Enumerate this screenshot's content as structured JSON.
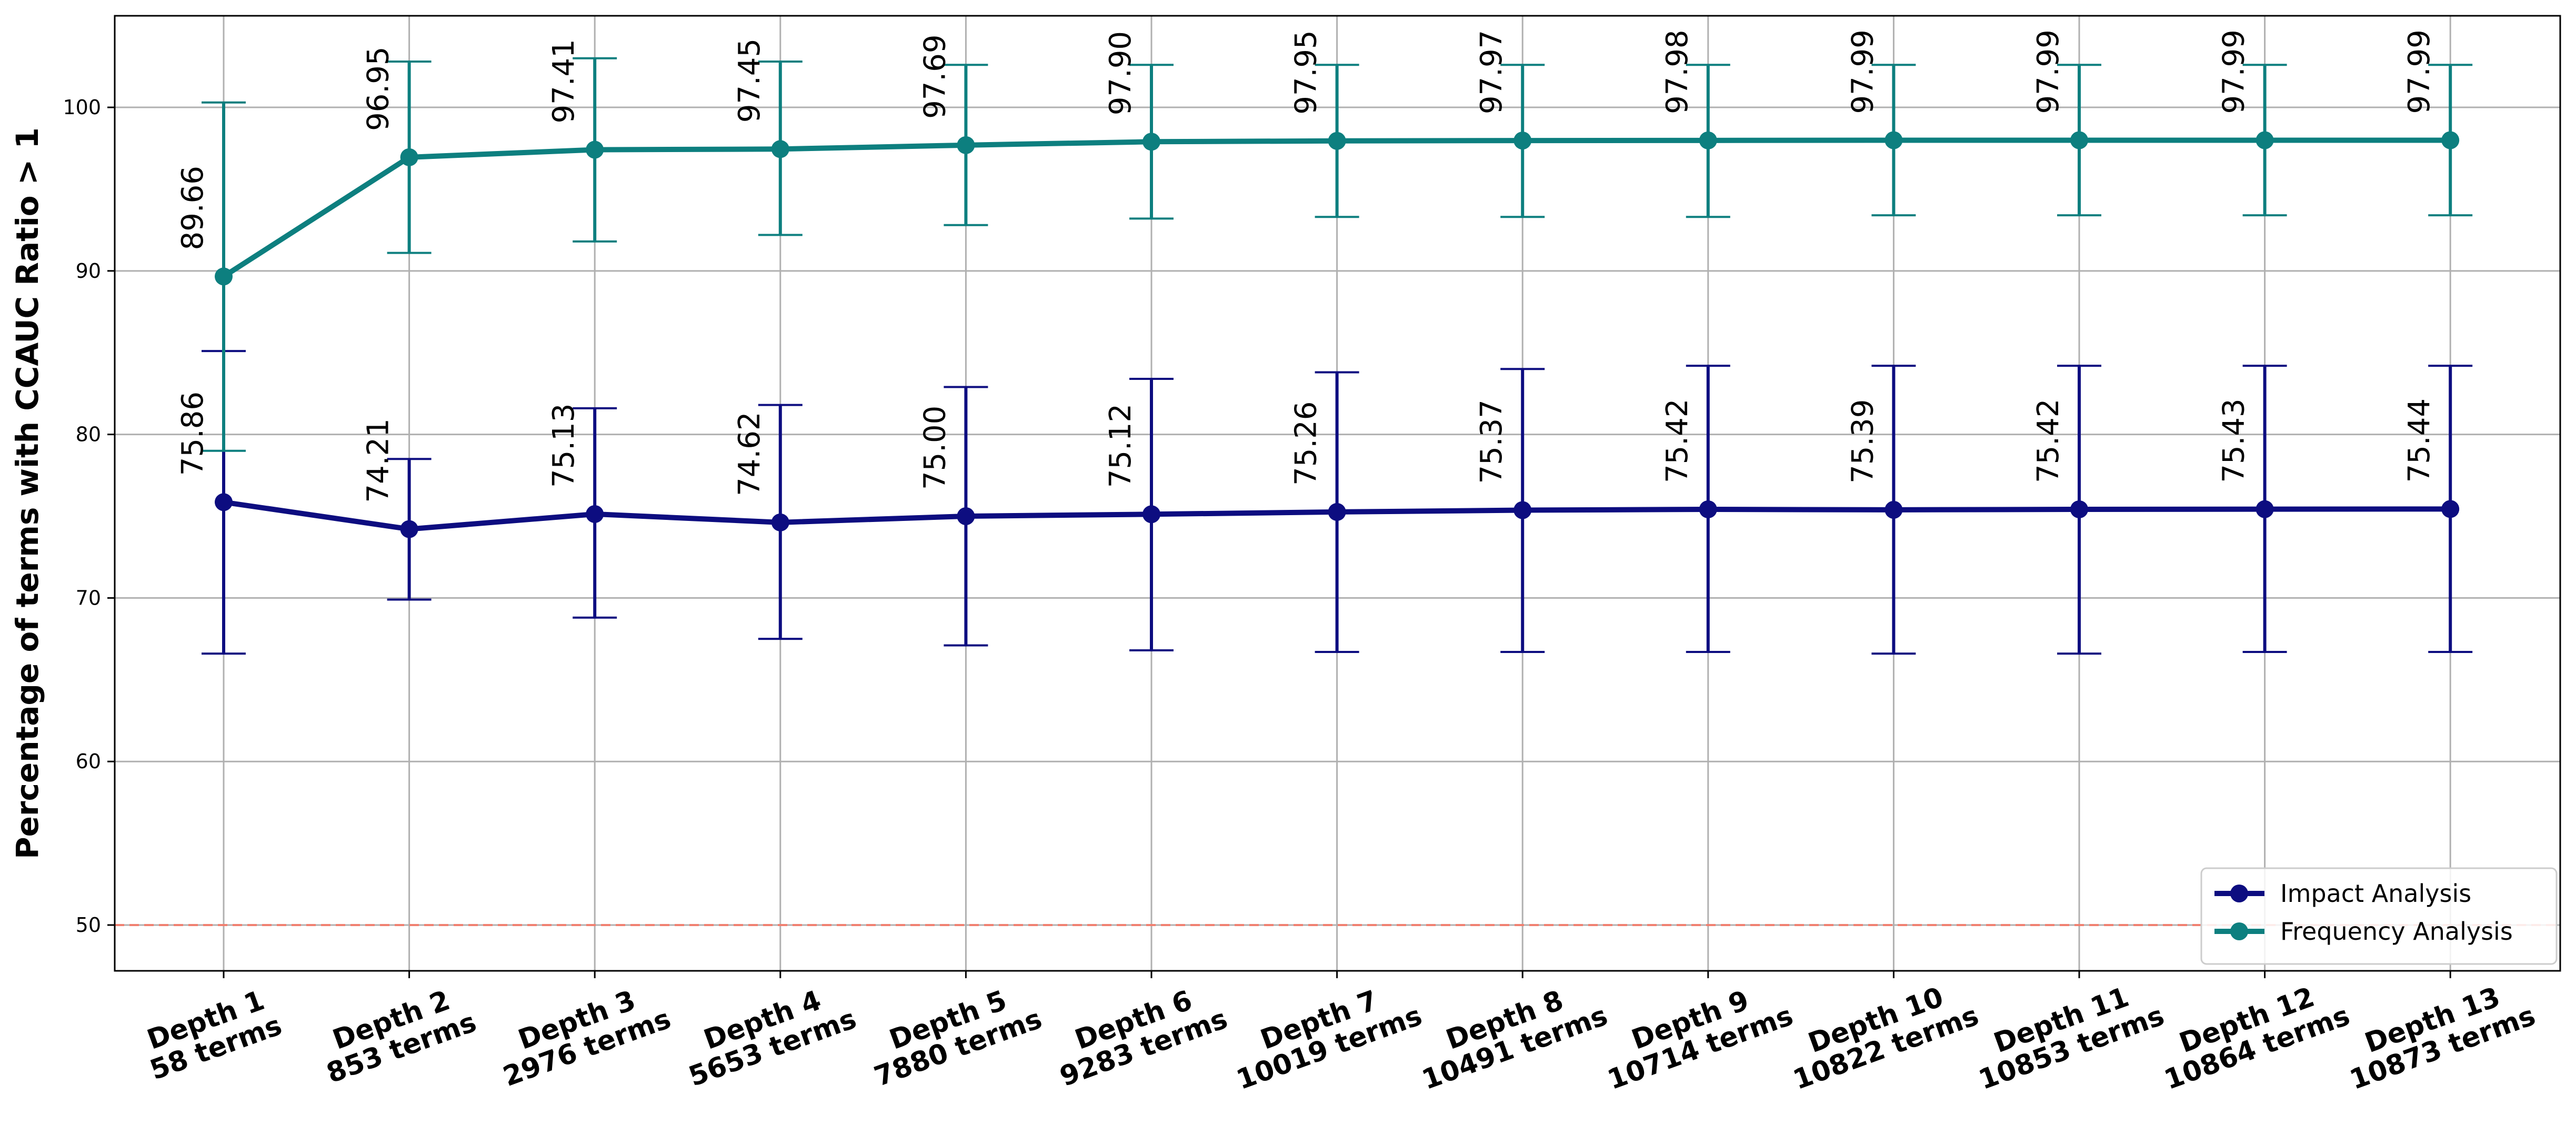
{
  "chart_data": {
    "type": "line",
    "title": "",
    "xlabel": "",
    "ylabel": "Percentage of terms with CCAUC Ratio > 1",
    "categories": [
      [
        "Depth 1",
        "58 terms"
      ],
      [
        "Depth 2",
        "853 terms"
      ],
      [
        "Depth 3",
        "2976 terms"
      ],
      [
        "Depth 4",
        "5653 terms"
      ],
      [
        "Depth 5",
        "7880 terms"
      ],
      [
        "Depth 6",
        "9283 terms"
      ],
      [
        "Depth 7",
        "10019 terms"
      ],
      [
        "Depth 8",
        "10491 terms"
      ],
      [
        "Depth 9",
        "10714 terms"
      ],
      [
        "Depth 10",
        "10822 terms"
      ],
      [
        "Depth 11",
        "10853 terms"
      ],
      [
        "Depth 12",
        "10864 terms"
      ],
      [
        "Depth 13",
        "10873 terms"
      ]
    ],
    "ylim": [
      47.2,
      105.6
    ],
    "yticks": [
      50,
      60,
      70,
      80,
      90,
      100
    ],
    "grid": true,
    "reference_line": {
      "y": 50,
      "color": "#f08070",
      "style": "dashed"
    },
    "legend_position": "lower-right",
    "series": [
      {
        "name": "Impact Analysis",
        "color": "#0d0d80",
        "values": [
          75.86,
          74.21,
          75.13,
          74.62,
          75.0,
          75.12,
          75.26,
          75.37,
          75.42,
          75.39,
          75.42,
          75.43,
          75.44
        ],
        "labels": [
          "75.86",
          "74.21",
          "75.13",
          "74.62",
          "75.00",
          "75.12",
          "75.26",
          "75.37",
          "75.42",
          "75.39",
          "75.42",
          "75.43",
          "75.44"
        ],
        "err_low": [
          66.6,
          69.9,
          68.8,
          67.5,
          67.1,
          66.8,
          66.7,
          66.7,
          66.7,
          66.6,
          66.6,
          66.7,
          66.7
        ],
        "err_high": [
          85.1,
          78.5,
          81.6,
          81.8,
          82.9,
          83.4,
          83.8,
          84.0,
          84.2,
          84.2,
          84.2,
          84.2,
          84.2
        ]
      },
      {
        "name": "Frequency Analysis",
        "color": "#0d7f7f",
        "values": [
          89.66,
          96.95,
          97.41,
          97.45,
          97.69,
          97.9,
          97.95,
          97.97,
          97.98,
          97.99,
          97.99,
          97.99,
          97.99
        ],
        "labels": [
          "89.66",
          "96.95",
          "97.41",
          "97.45",
          "97.69",
          "97.90",
          "97.95",
          "97.97",
          "97.98",
          "97.99",
          "97.99",
          "97.99",
          "97.99"
        ],
        "err_low": [
          79.0,
          91.1,
          91.8,
          92.2,
          92.8,
          93.2,
          93.3,
          93.3,
          93.3,
          93.4,
          93.4,
          93.4,
          93.4
        ],
        "err_high": [
          100.3,
          102.8,
          103.0,
          102.8,
          102.6,
          102.6,
          102.6,
          102.6,
          102.6,
          102.6,
          102.6,
          102.6,
          102.6
        ]
      }
    ]
  }
}
